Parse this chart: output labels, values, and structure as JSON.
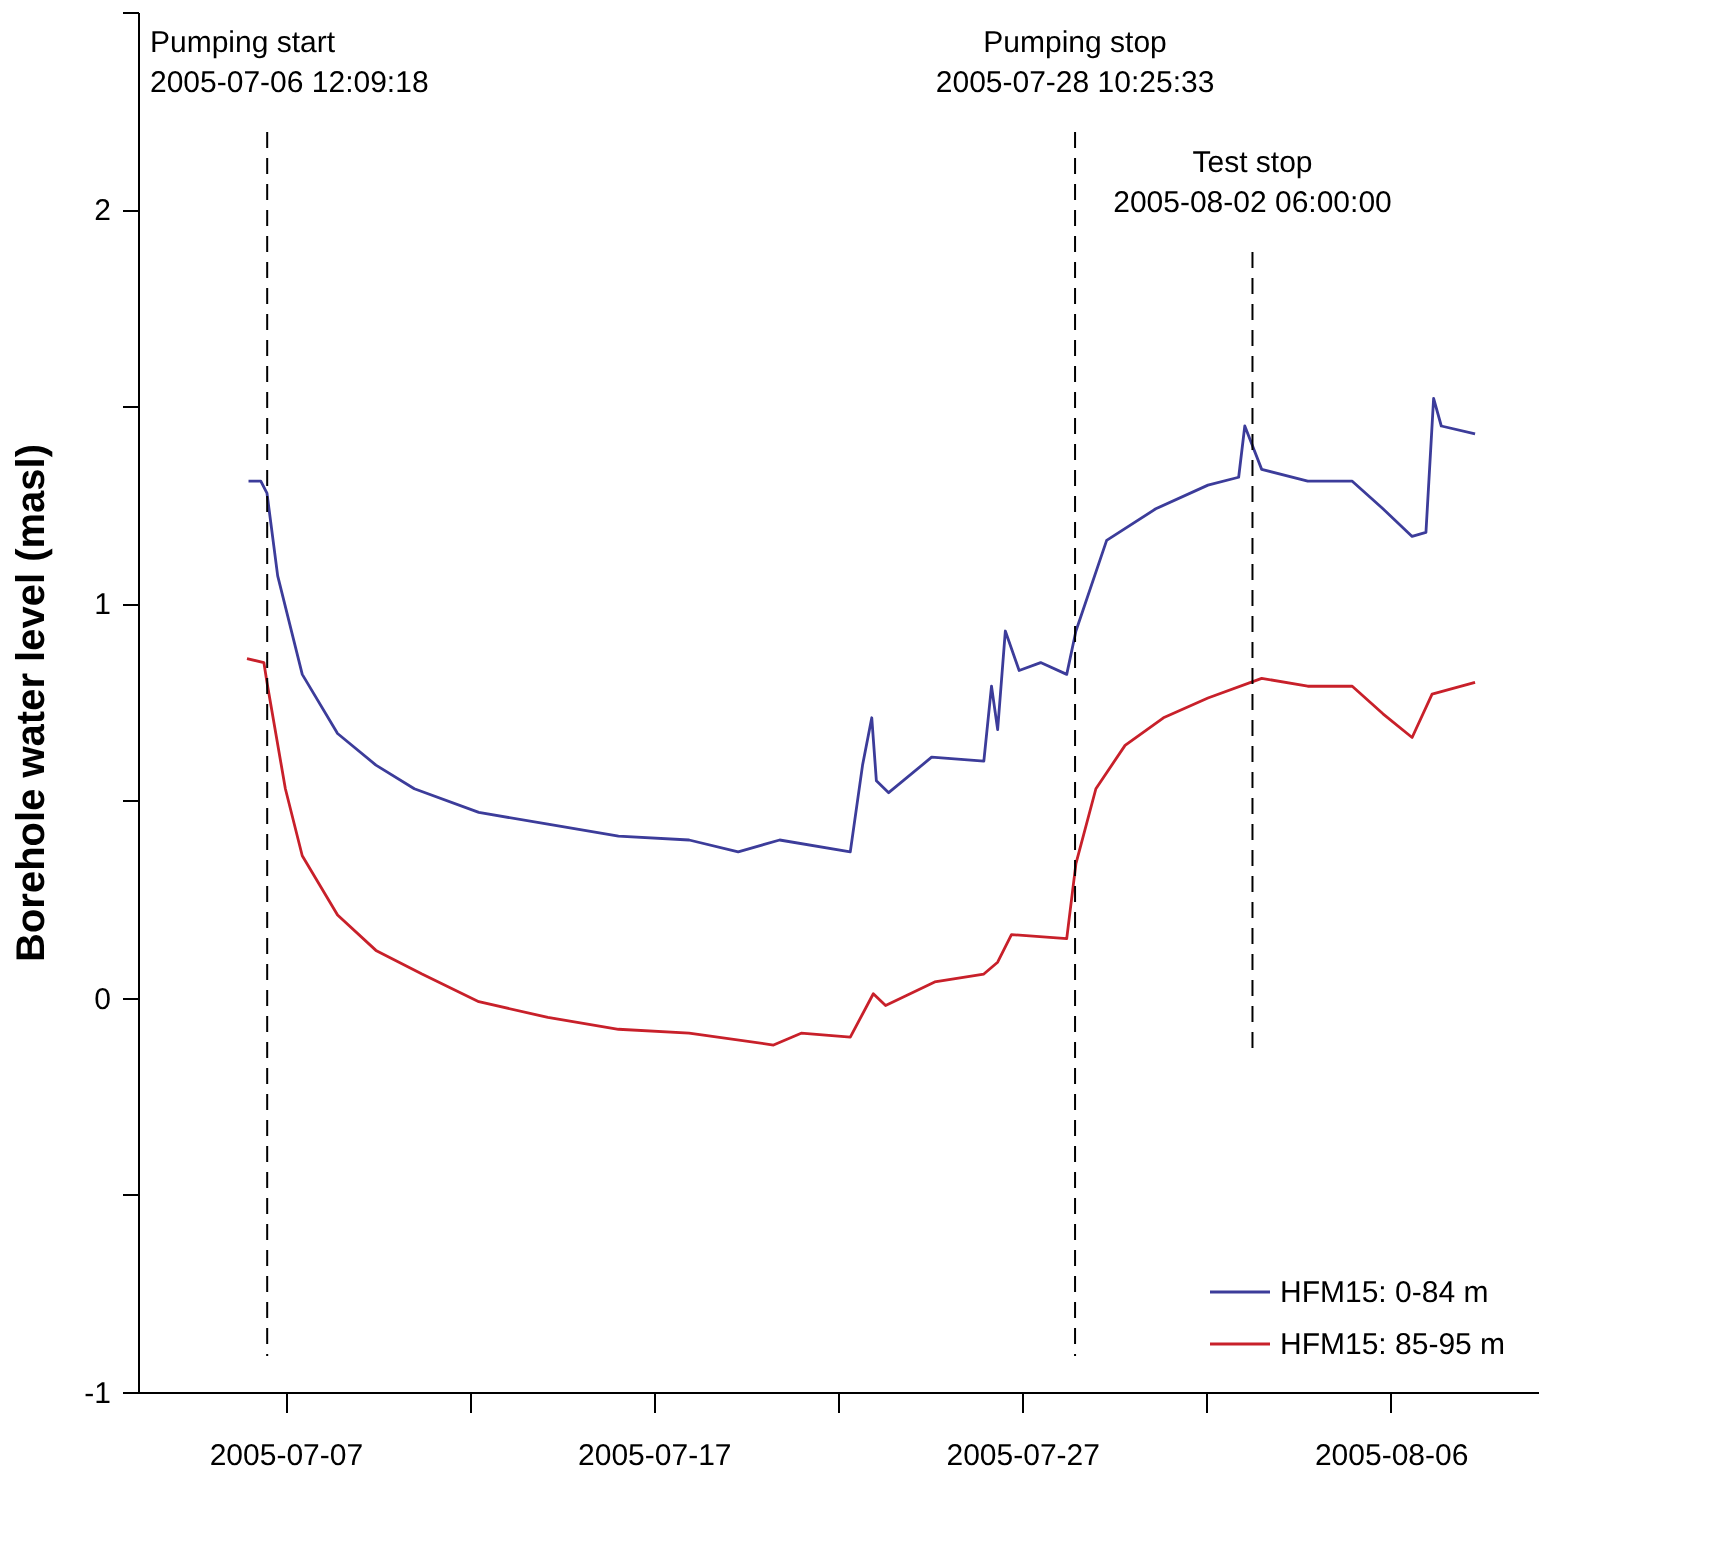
{
  "chart_data": {
    "type": "line",
    "ylabel": "Borehole water level (masl)",
    "xlim": [
      "2005-07-03",
      "2005-08-10"
    ],
    "xticks": [
      "2005-07-07",
      {
        "value": "2005-07-12",
        "label": null
      },
      "2005-07-17",
      {
        "value": "2005-07-22",
        "label": null
      },
      "2005-07-27",
      {
        "value": "2005-08-01",
        "label": null
      },
      "2005-08-06"
    ],
    "ylim": [
      -1,
      2.5
    ],
    "yticks": [
      -1,
      {
        "value": -0.5,
        "label": null
      },
      0,
      {
        "value": 0.5,
        "label": null
      },
      1,
      {
        "value": 1.5,
        "label": null
      },
      2,
      {
        "value": 2.5,
        "label": null
      }
    ],
    "grid": false,
    "legend": "bottom right",
    "line_style": "solid",
    "marker": "none",
    "ref_lines": [
      {
        "axis": "x",
        "value": "2005-07-06T12:09:18",
        "label": "Pumping start\n2005-07-06 12:09:18",
        "line_style": "dashed",
        "color": "#000000"
      },
      {
        "axis": "x",
        "value": "2005-07-28T10:25:33",
        "label": "Pumping stop\n2005-07-28 10:25:33",
        "line_style": "dashed",
        "color": "#000000"
      },
      {
        "axis": "x",
        "value": "2005-08-02T06:00:00",
        "label": "Test stop\n2005-08-02 06:00:00",
        "line_style": "dashed",
        "color": "#000000"
      }
    ],
    "series": [
      {
        "name": "HFM15: 0-84 m",
        "color": "#3c3c9a",
        "x": [
          "2005-07-06T00:00",
          "2005-07-06T08:00",
          "2005-07-06T12:00",
          "2005-07-06T19:00",
          "2005-07-07T11:00",
          "2005-07-08T10:00",
          "2005-07-09T11:00",
          "2005-07-10T12:00",
          "2005-07-12T06:00",
          "2005-07-14T03:00",
          "2005-07-16T01:00",
          "2005-07-17T23:00",
          "2005-07-19T07:00",
          "2005-07-20T10:00",
          "2005-07-22T08:00",
          "2005-07-22T16:00",
          "2005-07-22T22:00",
          "2005-07-23T01:00",
          "2005-07-23T09:00",
          "2005-07-24T13:00",
          "2005-07-25T23:00",
          "2005-07-26T04:00",
          "2005-07-26T08:00",
          "2005-07-26T13:00",
          "2005-07-26T22:00",
          "2005-07-27T12:00",
          "2005-07-28T05:00",
          "2005-07-28T11:00",
          "2005-07-29T07:00",
          "2005-07-30T15:00",
          "2005-08-01T01:00",
          "2005-08-01T21:00",
          "2005-08-02T01:00",
          "2005-08-02T12:00",
          "2005-08-03T18:00",
          "2005-08-04T23:00",
          "2005-08-05T19:00",
          "2005-08-06T14:00",
          "2005-08-06T23:00",
          "2005-08-07T04:00",
          "2005-08-07T09:00",
          "2005-08-08T07:00"
        ],
        "values": [
          1.31,
          1.31,
          1.28,
          1.07,
          0.82,
          0.67,
          0.59,
          0.53,
          0.47,
          0.44,
          0.41,
          0.4,
          0.37,
          0.4,
          0.37,
          0.59,
          0.71,
          0.55,
          0.52,
          0.61,
          0.6,
          0.79,
          0.68,
          0.93,
          0.83,
          0.85,
          0.82,
          0.93,
          1.16,
          1.24,
          1.3,
          1.32,
          1.45,
          1.34,
          1.31,
          1.31,
          1.24,
          1.17,
          1.18,
          1.52,
          1.45,
          1.43
        ]
      },
      {
        "name": "HFM15: 85-95 m",
        "color": "#c8202a",
        "x": [
          "2005-07-05T23:00",
          "2005-07-06T10:00",
          "2005-07-06T12:00",
          "2005-07-07T00:00",
          "2005-07-07T11:00",
          "2005-07-08T10:00",
          "2005-07-09T11:00",
          "2005-07-10T17:00",
          "2005-07-12T06:00",
          "2005-07-14T03:00",
          "2005-07-16T01:00",
          "2005-07-17T23:00",
          "2005-07-20T06:00",
          "2005-07-21T00:00",
          "2005-07-22T08:00",
          "2005-07-22T23:00",
          "2005-07-23T07:00",
          "2005-07-24T15:00",
          "2005-07-25T23:00",
          "2005-07-26T08:00",
          "2005-07-26T17:00",
          "2005-07-28T05:00",
          "2005-07-28T11:00",
          "2005-07-29T00:00",
          "2005-07-29T19:00",
          "2005-07-30T20:00",
          "2005-08-01T01:00",
          "2005-08-02T12:00",
          "2005-08-03T18:00",
          "2005-08-04T23:00",
          "2005-08-05T19:00",
          "2005-08-06T14:00",
          "2005-08-07T03:00",
          "2005-08-08T07:00"
        ],
        "values": [
          0.86,
          0.85,
          0.8,
          0.53,
          0.36,
          0.21,
          0.12,
          0.06,
          -0.01,
          -0.05,
          -0.08,
          -0.09,
          -0.12,
          -0.09,
          -0.1,
          0.01,
          -0.02,
          0.04,
          0.06,
          0.09,
          0.16,
          0.15,
          0.34,
          0.53,
          0.64,
          0.71,
          0.76,
          0.81,
          0.79,
          0.79,
          0.72,
          0.66,
          0.77,
          0.8
        ]
      }
    ]
  }
}
